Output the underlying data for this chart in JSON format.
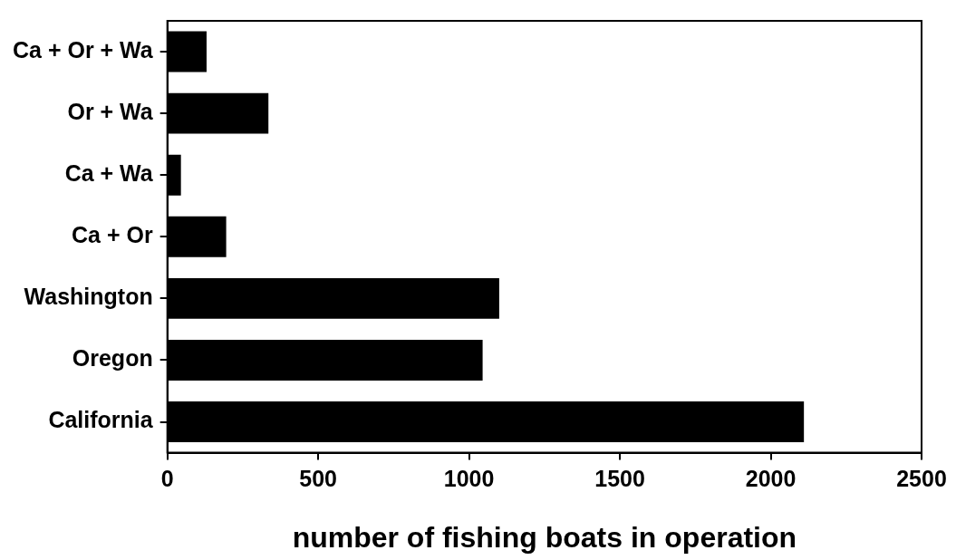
{
  "chart_data": {
    "type": "bar",
    "orientation": "horizontal",
    "xlabel": "number of fishing boats in operation",
    "categories": [
      "Ca + Or + Wa",
      "Or + Wa",
      "Ca + Wa",
      "Ca + Or",
      "Washington",
      "Oregon",
      "California"
    ],
    "values": [
      130,
      335,
      45,
      195,
      1100,
      1045,
      2110
    ],
    "color": "#000000",
    "xlim": [
      0,
      2500
    ],
    "xticks": [
      0,
      500,
      1000,
      1500,
      2000,
      2500
    ],
    "grid": false,
    "legend": false
  }
}
